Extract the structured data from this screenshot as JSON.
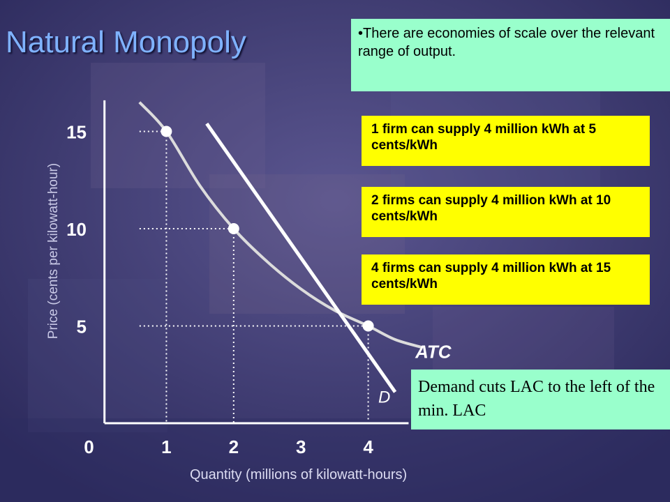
{
  "title": "Natural Monopoly",
  "econ_note": "•There are economies of scale over the relevant range of output.",
  "notes": [
    "1 firm can supply 4 million kWh at 5 cents/kWh",
    "2 firms can supply 4 million kWh at 10 cents/kWh",
    "4 firms can supply 4 million kWh at 15 cents/kWh"
  ],
  "demand_note": "Demand cuts LAC to the left of the min. LAC",
  "colors": {
    "note_green": "#99ffcc",
    "note_yellow": "#ffff00",
    "title": "#7fb2ff",
    "background": "#3d3b72"
  },
  "chart_data": {
    "type": "line",
    "xlabel": "Quantity (millions of kilowatt-hours)",
    "ylabel": "Price (cents per kilowatt-hour)",
    "x_ticks": [
      "0",
      "1",
      "2",
      "3",
      "4"
    ],
    "y_ticks": [
      "5",
      "10",
      "15"
    ],
    "xlim": [
      0,
      5
    ],
    "ylim": [
      0,
      16.6
    ],
    "series": [
      {
        "name": "ATC",
        "x": [
          0.6,
          1,
          1.5,
          2,
          2.5,
          3,
          3.5,
          4,
          4.4,
          4.8
        ],
        "y": [
          16.5,
          15,
          12.2,
          10,
          8.3,
          6.9,
          5.8,
          5,
          4.3,
          3.9
        ]
      },
      {
        "name": "D",
        "x": [
          1.6,
          2.2,
          3,
          3.6,
          4,
          4.4
        ],
        "y": [
          15.4,
          13.5,
          10.2,
          7.4,
          5,
          1.6
        ]
      }
    ],
    "points": [
      {
        "x": 1,
        "y": 15
      },
      {
        "x": 2,
        "y": 10
      },
      {
        "x": 4,
        "y": 5
      }
    ],
    "grid": false
  }
}
